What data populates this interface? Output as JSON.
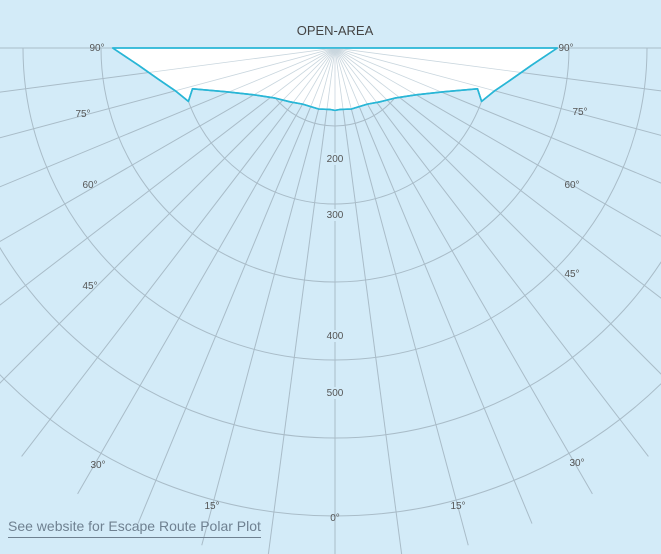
{
  "chart_data": {
    "type": "polar",
    "title": "OPEN-AREA",
    "radial_ticks": [
      100,
      200,
      300,
      400,
      500,
      600
    ],
    "radial_labels": [
      "200",
      "300",
      "400",
      "500"
    ],
    "angle_ticks_deg": [
      0,
      15,
      30,
      45,
      60,
      75,
      90
    ],
    "angle_labels": {
      "left": [
        "90°",
        "75°",
        "60°",
        "45°",
        "30°",
        "15°"
      ],
      "right": [
        "90°",
        "75°",
        "60°",
        "45°",
        "30°",
        "15°"
      ],
      "bottom": "0°"
    },
    "series": [
      {
        "color": "#29b6d6",
        "outer": [
          {
            "angle": 90,
            "r": 285
          },
          {
            "angle": 85,
            "r": 253
          },
          {
            "angle": 80,
            "r": 230
          },
          {
            "angle": 75,
            "r": 212
          },
          {
            "angle": 70,
            "r": 200
          }
        ],
        "inner": [
          {
            "angle": 74,
            "r": 190
          },
          {
            "angle": 68,
            "r": 150
          },
          {
            "angle": 60,
            "r": 120
          },
          {
            "angle": 50,
            "r": 100
          },
          {
            "angle": 40,
            "r": 90
          },
          {
            "angle": 30,
            "r": 83
          },
          {
            "angle": 15,
            "r": 81
          },
          {
            "angle": 5,
            "r": 79
          },
          {
            "angle": 0,
            "r": 80
          }
        ]
      }
    ]
  },
  "footer": {
    "link_text": "See website for Escape Route Polar Plot"
  }
}
